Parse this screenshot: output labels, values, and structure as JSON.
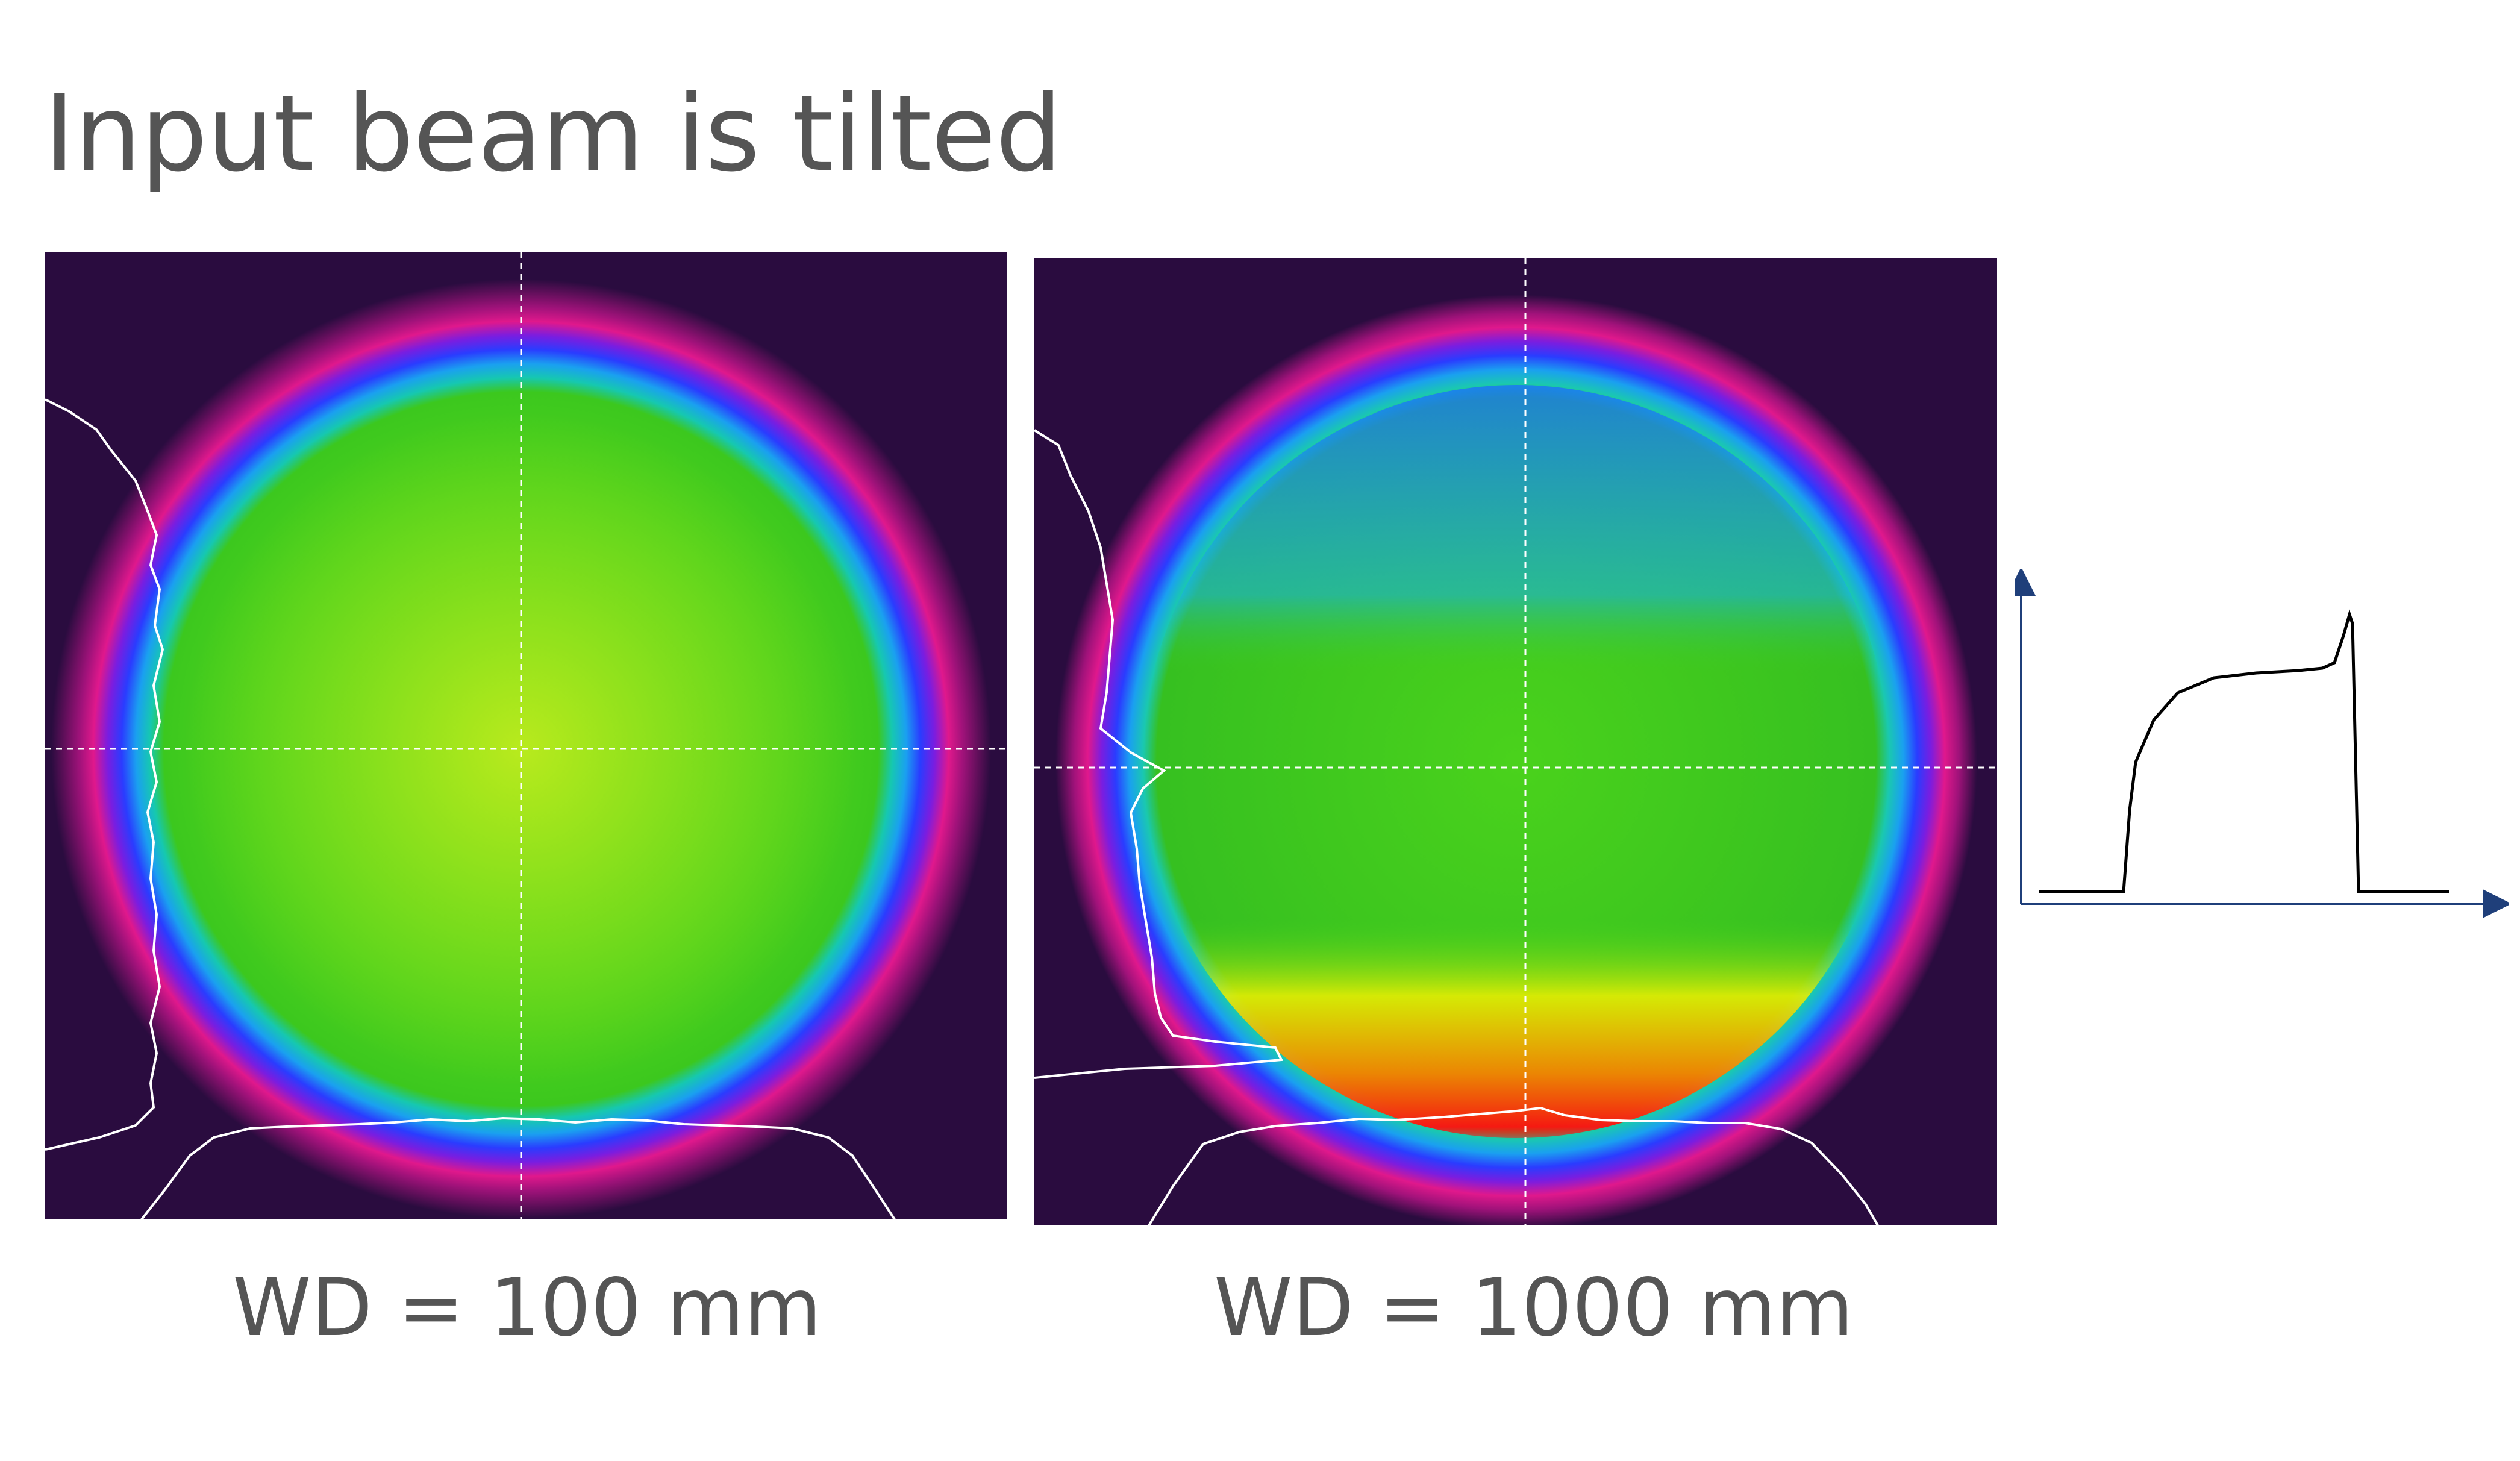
{
  "slide": {
    "title": "Input beam is tilted"
  },
  "panels": [
    {
      "caption": "WD = 100 mm"
    },
    {
      "caption": "WD = 1000 mm"
    }
  ],
  "colors": {
    "text": "#555555",
    "background_dark": "#2a0c3f",
    "arrow": "#1f3f7a",
    "profile_line": "#000000",
    "crosshair": "#ffffff"
  }
}
